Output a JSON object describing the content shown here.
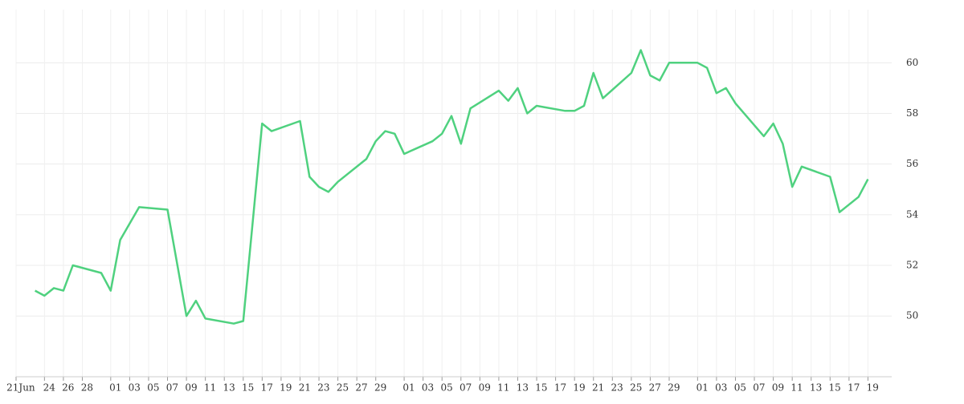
{
  "chart_data": {
    "type": "line",
    "x": [
      "Jun 23",
      "Jun 24",
      "Jun 25",
      "Jun 26",
      "Jun 27",
      "Jun 30",
      "Jul 1",
      "Jul 2",
      "Jul 4",
      "Jul 7",
      "Jul 9",
      "Jul 10",
      "Jul 11",
      "Jul 14",
      "Jul 15",
      "Jul 17",
      "Jul 18",
      "Jul 21",
      "Jul 22",
      "Jul 23",
      "Jul 24",
      "Jul 25",
      "Jul 28",
      "Jul 29",
      "Jul 30",
      "Jul 31",
      "Aug 1",
      "Aug 4",
      "Aug 5",
      "Aug 6",
      "Aug 7",
      "Aug 8",
      "Aug 11",
      "Aug 12",
      "Aug 13",
      "Aug 14",
      "Aug 15",
      "Aug 18",
      "Aug 19",
      "Aug 20",
      "Aug 21",
      "Aug 22",
      "Aug 25",
      "Aug 26",
      "Aug 27",
      "Aug 28",
      "Aug 29",
      "Sep 1",
      "Sep 2",
      "Sep 3",
      "Sep 4",
      "Sep 5",
      "Sep 8",
      "Sep 9",
      "Sep 10",
      "Sep 11",
      "Sep 12",
      "Sep 15",
      "Sep 16",
      "Sep 17",
      "Sep 18",
      "Sep 19"
    ],
    "series": [
      {
        "color": "#4fd17f",
        "values": [
          51.0,
          50.8,
          51.1,
          51.0,
          52.0,
          51.7,
          51.0,
          53.0,
          54.3,
          54.2,
          50.0,
          50.6,
          49.9,
          49.7,
          49.8,
          57.6,
          57.3,
          57.7,
          55.5,
          55.1,
          54.9,
          55.3,
          56.2,
          56.9,
          57.3,
          57.2,
          56.4,
          56.9,
          57.2,
          57.9,
          56.8,
          58.2,
          58.9,
          58.5,
          59.0,
          58.0,
          58.3,
          58.1,
          58.1,
          58.3,
          59.6,
          58.6,
          59.6,
          60.5,
          59.5,
          59.3,
          60.0,
          60.0,
          59.8,
          58.8,
          59.0,
          58.4,
          57.1,
          57.6,
          56.8,
          55.1,
          55.9,
          55.5,
          54.1,
          54.4,
          54.7,
          55.4
        ]
      }
    ],
    "xlim": [
      "Jun 21",
      "Sep 21"
    ],
    "xticks": [
      {
        "value": "Jun 21",
        "label": "21Jun"
      },
      {
        "value": "Jun 24",
        "label": "24"
      },
      {
        "value": "Jun 26",
        "label": "26"
      },
      {
        "value": "Jun 28",
        "label": "28"
      },
      {
        "value": "Jul 1",
        "label": "01"
      },
      {
        "value": "Jul 3",
        "label": "03"
      },
      {
        "value": "Jul 5",
        "label": "05"
      },
      {
        "value": "Jul 7",
        "label": "07"
      },
      {
        "value": "Jul 9",
        "label": "09"
      },
      {
        "value": "Jul 11",
        "label": "11"
      },
      {
        "value": "Jul 13",
        "label": "13"
      },
      {
        "value": "Jul 15",
        "label": "15"
      },
      {
        "value": "Jul 17",
        "label": "17"
      },
      {
        "value": "Jul 19",
        "label": "19"
      },
      {
        "value": "Jul 21",
        "label": "21"
      },
      {
        "value": "Jul 23",
        "label": "23"
      },
      {
        "value": "Jul 25",
        "label": "25"
      },
      {
        "value": "Jul 27",
        "label": "27"
      },
      {
        "value": "Jul 29",
        "label": "29"
      },
      {
        "value": "Aug 1",
        "label": "01"
      },
      {
        "value": "Aug 3",
        "label": "03"
      },
      {
        "value": "Aug 5",
        "label": "05"
      },
      {
        "value": "Aug 7",
        "label": "07"
      },
      {
        "value": "Aug 9",
        "label": "09"
      },
      {
        "value": "Aug 11",
        "label": "11"
      },
      {
        "value": "Aug 13",
        "label": "13"
      },
      {
        "value": "Aug 15",
        "label": "15"
      },
      {
        "value": "Aug 17",
        "label": "17"
      },
      {
        "value": "Aug 19",
        "label": "19"
      },
      {
        "value": "Aug 21",
        "label": "21"
      },
      {
        "value": "Aug 23",
        "label": "23"
      },
      {
        "value": "Aug 25",
        "label": "25"
      },
      {
        "value": "Aug 27",
        "label": "27"
      },
      {
        "value": "Aug 29",
        "label": "29"
      },
      {
        "value": "Sep 1",
        "label": "01"
      },
      {
        "value": "Sep 3",
        "label": "03"
      },
      {
        "value": "Sep 5",
        "label": "05"
      },
      {
        "value": "Sep 7",
        "label": "07"
      },
      {
        "value": "Sep 9",
        "label": "09"
      },
      {
        "value": "Sep 11",
        "label": "11"
      },
      {
        "value": "Sep 13",
        "label": "13"
      },
      {
        "value": "Sep 15",
        "label": "15"
      },
      {
        "value": "Sep 17",
        "label": "17"
      },
      {
        "value": "Sep 19",
        "label": "19"
      }
    ],
    "ylim": [
      47.6,
      62.1
    ],
    "yticks": [
      50,
      52,
      54,
      56,
      58,
      60
    ],
    "grid": true
  }
}
